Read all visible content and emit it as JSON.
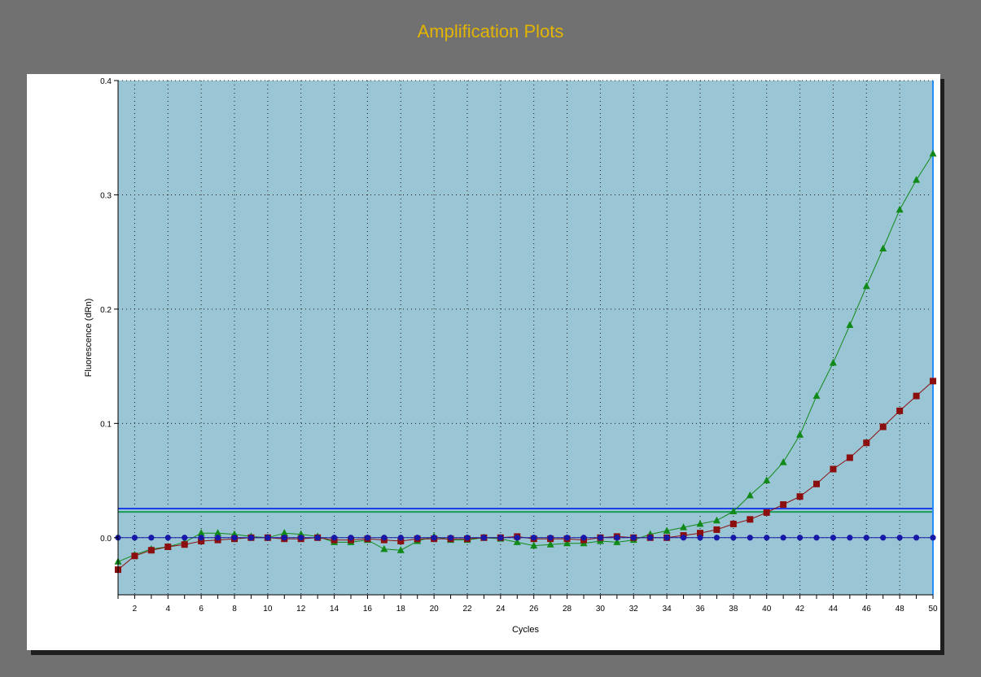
{
  "window": {
    "title": "Amplification Plots"
  },
  "colors": {
    "frame": "#717171",
    "title": "#e3b400",
    "plot_bg": "#9ac5d4",
    "green": "#128a1a",
    "red": "#8b0f0f",
    "blue": "#1818a8",
    "threshold_blue": "#1e3ee8",
    "threshold_green": "#1b9a5a",
    "cursor": "#2b8cff"
  },
  "chart_data": {
    "type": "line",
    "xlabel": "Cycles",
    "ylabel": "Fluorescence (dRn)",
    "xlim": [
      1,
      50
    ],
    "ylim": [
      -0.05,
      0.4
    ],
    "x_ticks": [
      2,
      4,
      6,
      8,
      10,
      12,
      14,
      16,
      18,
      20,
      22,
      24,
      26,
      28,
      30,
      32,
      34,
      36,
      38,
      40,
      42,
      44,
      46,
      48,
      50
    ],
    "y_ticks": [
      0.0,
      0.1,
      0.2,
      0.3,
      0.4
    ],
    "y_tick_labels": [
      "0.0",
      "0.1",
      "0.2",
      "0.3",
      "0.4"
    ],
    "grid": true,
    "x": [
      1,
      2,
      3,
      4,
      5,
      6,
      7,
      8,
      9,
      10,
      11,
      12,
      13,
      14,
      15,
      16,
      17,
      18,
      19,
      20,
      21,
      22,
      23,
      24,
      25,
      26,
      27,
      28,
      29,
      30,
      31,
      32,
      33,
      34,
      35,
      36,
      37,
      38,
      39,
      40,
      41,
      42,
      43,
      44,
      45,
      46,
      47,
      48,
      49,
      50
    ],
    "series": [
      {
        "marker": "triangle",
        "color": "#128a1a",
        "values": [
          -0.021,
          -0.015,
          -0.01,
          -0.008,
          -0.004,
          0.004,
          0.004,
          0.003,
          0.001,
          0.0,
          0.004,
          0.003,
          0.001,
          -0.004,
          -0.004,
          -0.002,
          -0.01,
          -0.011,
          -0.003,
          0.001,
          -0.002,
          -0.002,
          0.0,
          -0.001,
          -0.004,
          -0.007,
          -0.006,
          -0.005,
          -0.005,
          -0.003,
          -0.004,
          -0.002,
          0.003,
          0.006,
          0.009,
          0.012,
          0.015,
          0.023,
          0.037,
          0.05,
          0.066,
          0.09,
          0.124,
          0.153,
          0.186,
          0.22,
          0.253,
          0.287,
          0.313,
          0.336
        ]
      },
      {
        "marker": "square",
        "color": "#8b0f0f",
        "values": [
          -0.028,
          -0.016,
          -0.011,
          -0.008,
          -0.006,
          -0.003,
          -0.002,
          -0.001,
          0.0,
          0.0,
          -0.001,
          -0.001,
          0.0,
          -0.002,
          -0.002,
          -0.001,
          -0.002,
          -0.003,
          -0.001,
          -0.001,
          -0.001,
          -0.001,
          0.0,
          0.0,
          0.001,
          -0.001,
          -0.001,
          -0.001,
          -0.002,
          0.0,
          0.001,
          0.0,
          0.0,
          0.0,
          0.002,
          0.004,
          0.007,
          0.012,
          0.016,
          0.022,
          0.029,
          0.036,
          0.047,
          0.06,
          0.07,
          0.083,
          0.097,
          0.111,
          0.124,
          0.137
        ]
      },
      {
        "marker": "circle",
        "color": "#1818a8",
        "values": [
          0.0,
          0.0,
          0.0,
          0.0,
          0.0,
          0.0,
          0.0,
          0.0,
          0.0,
          0.0,
          0.0,
          0.0,
          0.0,
          0.0,
          0.0,
          0.0,
          0.0,
          0.0,
          0.0,
          0.0,
          0.0,
          0.0,
          0.0,
          0.0,
          0.0,
          0.0,
          0.0,
          0.0,
          0.0,
          0.0,
          0.0,
          0.0,
          0.0,
          0.0,
          0.0,
          0.0,
          0.0,
          0.0,
          0.0,
          0.0,
          0.0,
          0.0,
          0.0,
          0.0,
          0.0,
          0.0,
          0.0,
          0.0,
          0.0,
          0.0
        ]
      }
    ],
    "thresholds": [
      {
        "value": 0.0255,
        "color": "#1e3ee8"
      },
      {
        "value": 0.0225,
        "color": "#1b9a5a"
      }
    ],
    "cursor_x": 50
  }
}
